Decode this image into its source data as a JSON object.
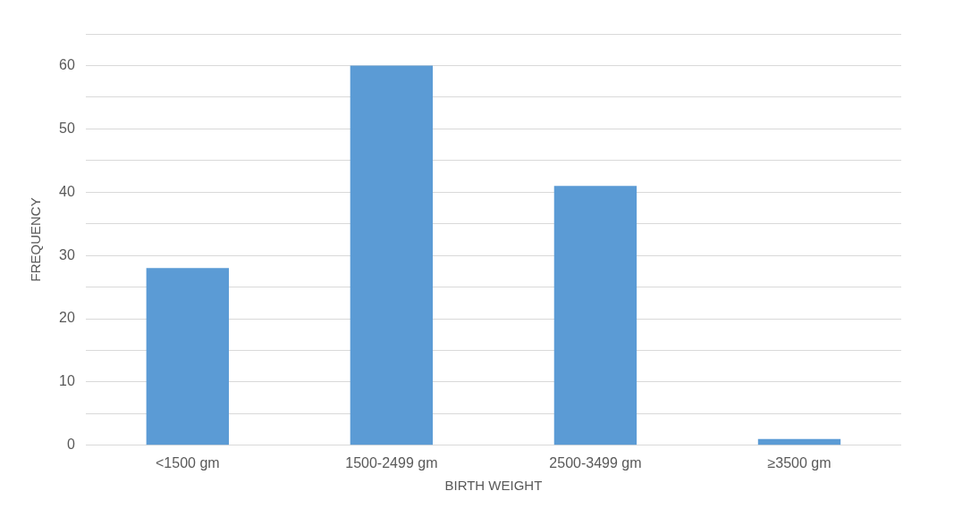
{
  "chart_data": {
    "type": "bar",
    "xlabel": "BIRTH WEIGHT",
    "ylabel": "FREQUENCY",
    "categories": [
      "<1500 gm",
      "1500-2499 gm",
      "2500-3499 gm",
      "≥3500 gm"
    ],
    "values": [
      28,
      60,
      41,
      1
    ],
    "color": "#5b9bd5",
    "ylim": [
      0,
      65
    ],
    "yticks": [
      0,
      {
        "value": 5,
        "label": null
      },
      10,
      {
        "value": 15,
        "label": null
      },
      20,
      {
        "value": 25,
        "label": null
      },
      30,
      {
        "value": 35,
        "label": null
      },
      40,
      {
        "value": 45,
        "label": null
      },
      50,
      {
        "value": 55,
        "label": null
      },
      60,
      {
        "value": 65,
        "label": null
      }
    ],
    "grid": "y"
  }
}
